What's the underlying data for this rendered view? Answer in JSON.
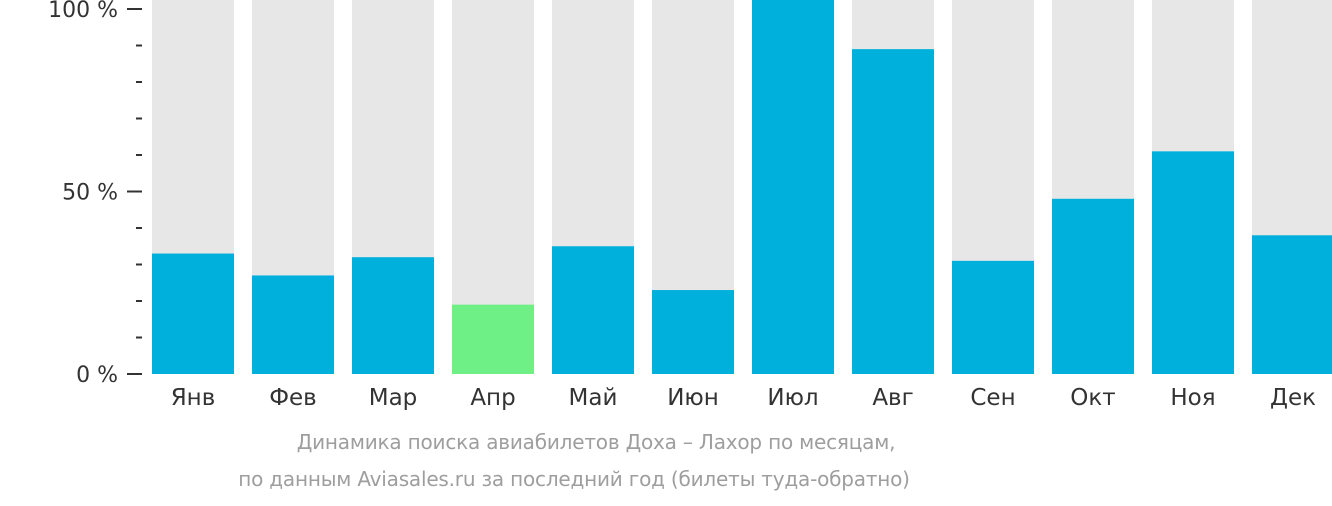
{
  "chart_data": {
    "type": "bar",
    "categories": [
      "Янв",
      "Фев",
      "Мар",
      "Апр",
      "Май",
      "Июн",
      "Июл",
      "Авг",
      "Сен",
      "Окт",
      "Ноя",
      "Дек"
    ],
    "values": [
      33,
      27,
      32,
      19,
      35,
      23,
      100,
      89,
      31,
      48,
      61,
      38
    ],
    "highlight_index": 3,
    "ylim": [
      0,
      100
    ],
    "y_ticks": [
      {
        "value": 0,
        "label": "0 %"
      },
      {
        "value": 50,
        "label": "50 %"
      },
      {
        "value": 100,
        "label": "100 %"
      }
    ],
    "minor_tick_step": 10,
    "grid": false,
    "colors": {
      "bar": "#00b0dc",
      "highlight": "#6ef087",
      "background_bar": "#e7e7e7",
      "axis_text": "#333333",
      "tick": "#333333"
    }
  },
  "caption": {
    "line1": "Динамика поиска авиабилетов Доха – Лахор по месяцам,",
    "line2": "по данным Aviasales.ru за последний год (билеты туда-обратно)"
  }
}
